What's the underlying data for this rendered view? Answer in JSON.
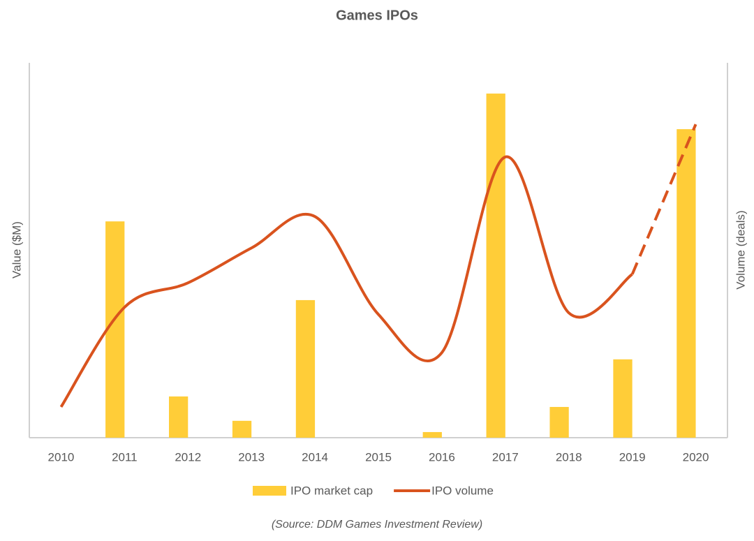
{
  "chart_data": {
    "type": "bar-line",
    "title": "Games IPOs",
    "y_label": "Value ($M)",
    "y2_label": "Volume (deals)",
    "source": "(Source: DDM Games Investment Review)",
    "categories": [
      "2010",
      "2011",
      "2012",
      "2013",
      "2014",
      "2015",
      "2016",
      "2017",
      "2018",
      "2019",
      "2020"
    ],
    "ylim": [
      0,
      100
    ],
    "y2lim": [
      0,
      100
    ],
    "legend": "bottom",
    "series": [
      {
        "name": "IPO market cap",
        "type": "bar",
        "color": "#ffcd38",
        "values": [
          0,
          57.7,
          11,
          4.5,
          36.7,
          0,
          1.5,
          91.8,
          8.2,
          20.9,
          82.3
        ]
      },
      {
        "name": "IPO volume",
        "type": "line",
        "axis": "y2",
        "color": "#d9531e",
        "dashed_from": 9,
        "values": [
          8.2,
          34.8,
          41.3,
          50.6,
          59.0,
          32.9,
          22.7,
          74.9,
          33.3,
          43.6,
          83.6
        ]
      }
    ]
  }
}
